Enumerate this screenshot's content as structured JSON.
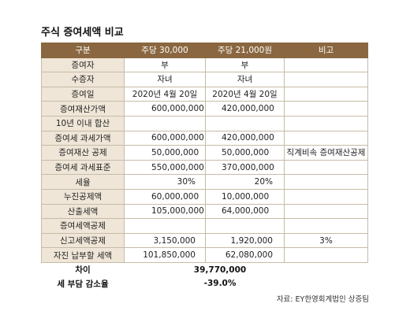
{
  "title": "주식 증여세액 비교",
  "table": {
    "headers": [
      "구분",
      "주당 30,000",
      "주당 21,000원",
      "비고"
    ],
    "rows": [
      {
        "label": "증여자",
        "a": "부",
        "b": "부",
        "note": "",
        "align": "center"
      },
      {
        "label": "수증자",
        "a": "자녀",
        "b": "자녀",
        "note": "",
        "align": "center"
      },
      {
        "label": "증여일",
        "a": "2020년 4월 20일",
        "b": "2020년 4월 20일",
        "note": "",
        "align": "center"
      },
      {
        "label": "증여재산가액",
        "a": "600,000,000",
        "b": "420,000,000",
        "note": "",
        "align": "left"
      },
      {
        "label": "10년 이내 합산",
        "a": "",
        "b": "",
        "note": "",
        "align": "left"
      },
      {
        "label": "증여세 과세가액",
        "a": "600,000,000",
        "b": "420,000,000",
        "note": "",
        "align": "left"
      },
      {
        "label": "증여재산 공제",
        "a": "50,000,000",
        "b": "50,000,000",
        "note": "직계비속 증여재산공제",
        "align": "left"
      },
      {
        "label": "증여세 과세표준",
        "a": "550,000,000",
        "b": "370,000,000",
        "note": "",
        "align": "left"
      },
      {
        "label": "세율",
        "a": "30%",
        "b": "20%",
        "note": "",
        "align": "right"
      },
      {
        "label": "누진공제액",
        "a": "60,000,000",
        "b": "10,000,000",
        "note": "",
        "align": "left"
      },
      {
        "label": "산출세액",
        "a": "105,000,000",
        "b": "64,000,000",
        "note": "",
        "align": "left"
      },
      {
        "label": "증여세액공제",
        "a": "",
        "b": "",
        "note": "",
        "align": "left"
      },
      {
        "label": "신고세액공제",
        "a": "3,150,000",
        "b": "1,920,000",
        "note": "3%",
        "align": "right"
      },
      {
        "label": "자진 납부할 세액",
        "a": "101,850,000",
        "b": "62,080,000",
        "note": "",
        "align": "right"
      }
    ],
    "summary": [
      {
        "label": "차이",
        "value": "39,770,000"
      },
      {
        "label": "세 부담 감소율",
        "value": "-39.0%"
      }
    ]
  },
  "source": "자료: EY한영회계법인 상증팀"
}
